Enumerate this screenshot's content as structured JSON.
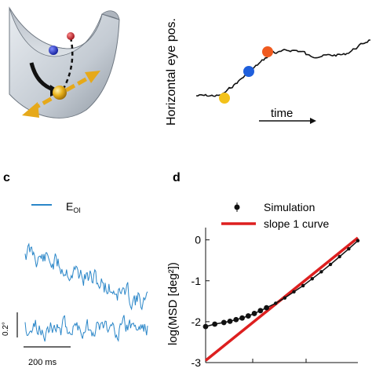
{
  "panel_a": {
    "colors": {
      "shell": "#c9cfd6",
      "shell_edge": "#6e7781",
      "ball_gold": "#e8b21c",
      "ball_blue": "#1f2fd0",
      "ball_red": "#d81e2a",
      "arrow_black": "#111111",
      "arrow_gold": "#e6a91a"
    }
  },
  "panel_b": {
    "ylabel": "Horizontal eye pos.",
    "xlabel": "time",
    "colors": {
      "trace": "#111111",
      "dot_yellow": "#f3c21a",
      "dot_blue": "#1f5fdc",
      "dot_orange": "#ef5a1f"
    }
  },
  "panel_c": {
    "label": "c",
    "legend_base": "E",
    "legend_sub": "OI",
    "scale_y_label": "0.2°",
    "scale_x_label": "200 ms",
    "colors": {
      "trace": "#2a86c8"
    }
  },
  "panel_d": {
    "label": "d",
    "legend_sim": "Simulation",
    "legend_slope": "slope 1 curve",
    "ylabel": "log(MSD [deg²])"
  },
  "chart_data": {
    "type": "scatter",
    "title": "",
    "xlabel": "",
    "ylabel": "log(MSD [deg²])",
    "yticks": [
      "0",
      "-1",
      "-2",
      "-3"
    ],
    "ylim": [
      -3,
      0.3
    ],
    "grid": false,
    "legend_position": "top-right",
    "series": [
      {
        "name": "Simulation",
        "style": "black markers with error bars and line",
        "color": "#000000",
        "x": [
          0.0,
          0.06,
          0.12,
          0.16,
          0.2,
          0.24,
          0.28,
          0.32,
          0.36,
          0.4,
          0.46,
          0.52,
          0.58,
          0.64,
          0.7,
          0.76,
          0.82,
          0.88,
          0.94,
          1.0
        ],
        "y": [
          -2.12,
          -2.06,
          -2.02,
          -1.99,
          -1.95,
          -1.91,
          -1.86,
          -1.8,
          -1.73,
          -1.66,
          -1.55,
          -1.42,
          -1.27,
          -1.12,
          -0.95,
          -0.78,
          -0.6,
          -0.41,
          -0.22,
          -0.02
        ]
      },
      {
        "name": "slope 1 curve",
        "style": "red line",
        "color": "#dd1f1f",
        "x": [
          0.0,
          1.0
        ],
        "y": [
          -2.95,
          0.05
        ]
      }
    ]
  }
}
